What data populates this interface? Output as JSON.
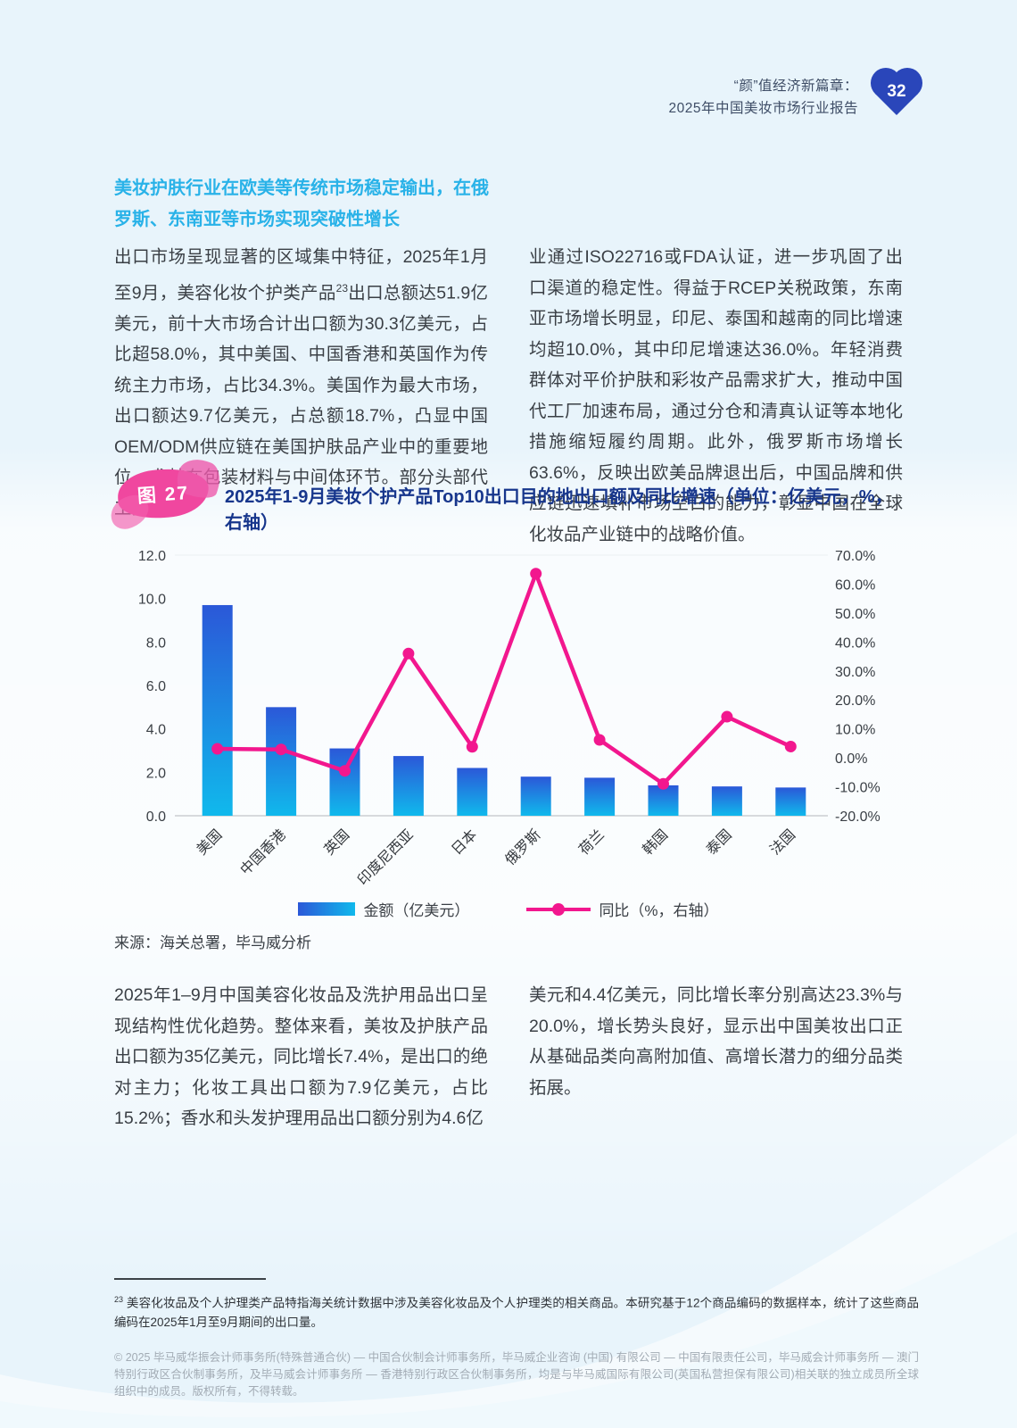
{
  "header": {
    "title_line1": "“颜”值经济新篇章：",
    "title_line2": "2025年中国美妆市场行业报告",
    "page_number": "32"
  },
  "intro": {
    "heading": "美妆护肤行业在欧美等传统市场稳定输出，在俄罗斯、东南亚等市场实现突破性增长",
    "col1_part1": "出口市场呈现显著的区域集中特征，2025年1月至9月，美容化妆个护类产品",
    "col1_sup": "23",
    "col1_part2": "出口总额达51.9亿美元，前十大市场合计出口额为30.3亿美元，占比超58.0%，其中美国、中国香港和英国作为传统主力市场，占比34.3%。美国作为最大市场，出口额达9.7亿美元，占总额18.7%，凸显中国OEM/ODM供应链在美国护肤品产业中的重要地位，尤其在包装材料与中间体环节。部分头部代工企",
    "col2": "业通过ISO22716或FDA认证，进一步巩固了出口渠道的稳定性。得益于RCEP关税政策，东南亚市场增长明显，印尼、泰国和越南的同比增速均超10.0%，其中印尼增速达36.0%。年轻消费群体对平价护肤和彩妆产品需求扩大，推动中国代工厂加速布局，通过分仓和清真认证等本地化措施缩短履约周期。此外，俄罗斯市场增长63.6%，反映出欧美品牌退出后，中国品牌和供应链迅速填补市场空白的能力，彰显中国在全球化妆品产业链中的战略价值。"
  },
  "figure": {
    "badge": "图 27"
  },
  "chart_data": {
    "type": "bar+line",
    "title": "2025年1-9月美妆个护产品Top10出口目的地出口额及同比增速（单位：亿美元，%，右轴）",
    "categories": [
      "美国",
      "中国香港",
      "英国",
      "印度尼西亚",
      "日本",
      "俄罗斯",
      "荷兰",
      "韩国",
      "泰国",
      "法国"
    ],
    "series": [
      {
        "name": "金额（亿美元）",
        "kind": "bar",
        "axis": "left",
        "values": [
          9.7,
          5.0,
          3.1,
          2.75,
          2.2,
          1.8,
          1.75,
          1.4,
          1.35,
          1.3
        ]
      },
      {
        "name": "同比（%，右轴）",
        "kind": "line",
        "axis": "right",
        "values": [
          3.1,
          2.9,
          -4.5,
          36.0,
          3.8,
          63.6,
          6.2,
          -9.0,
          14.2,
          3.9
        ]
      }
    ],
    "left_axis": {
      "min": 0,
      "max": 12,
      "tick_labels": [
        "12.0",
        "10.0",
        "8.0",
        "6.0",
        "4.0",
        "2.0",
        "0.0"
      ]
    },
    "right_axis": {
      "min": -20,
      "max": 70,
      "tick_labels": [
        "70.0%",
        "60.0%",
        "50.0%",
        "40.0%",
        "30.0%",
        "20.0%",
        "10.0%",
        "0.0%",
        "-10.0%",
        "-20.0%"
      ]
    },
    "grid": "baseline-only",
    "legend_position": "bottom"
  },
  "source": "来源：海关总署，毕马威分析",
  "analysis": {
    "col1": "2025年1–9月中国美容化妆品及洗护用品出口呈现结构性优化趋势。整体来看，美妆及护肤产品出口额为35亿美元，同比增长7.4%，是出口的绝对主力；化妆工具出口额为7.9亿美元，占比15.2%；香水和头发护理用品出口额分别为4.6亿",
    "col2": "美元和4.4亿美元，同比增长率分别高达23.3%与20.0%，增长势头良好，显示出中国美妆出口正从基础品类向高附加值、高增长潜力的细分品类拓展。"
  },
  "footnote": {
    "sup": "23",
    "text": "美容化妆品及个人护理类产品特指海关统计数据中涉及美容化妆品及个人护理类的相关商品。本研究基于12个商品编码的数据样本，统计了这些商品编码在2025年1月至9月期间的出口量。"
  },
  "footer": "© 2025 毕马威华振会计师事务所(特殊普通合伙) — 中国合伙制会计师事务所，毕马威企业咨询 (中国) 有限公司 — 中国有限责任公司，毕马威会计师事务所 — 澳门特别行政区合伙制事务所，及毕马威会计师事务所 — 香港特别行政区合伙制事务所，均是与毕马威国际有限公司(英国私营担保有限公司)相关联的独立成员所全球组织中的成员。版权所有，不得转载。",
  "colors": {
    "page_bg": "#e8f4fb",
    "heading_cyan": "#29b2e8",
    "title_navy": "#17368c",
    "bar_gradient_top": "#2b58d8",
    "bar_gradient_bottom": "#10b9ec",
    "line_pink": "#f2178e",
    "badge_pink": "#f0479f",
    "heart_blue": "#2a46ba"
  }
}
